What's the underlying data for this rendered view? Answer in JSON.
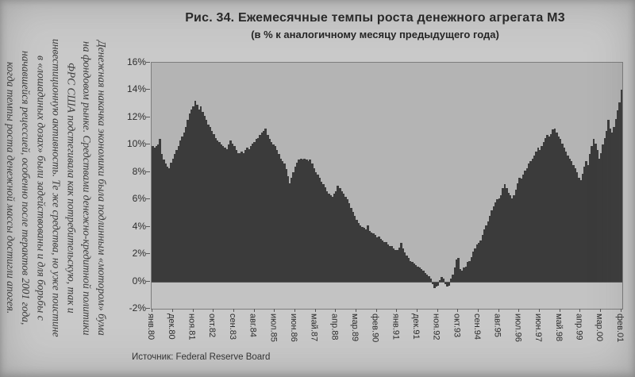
{
  "page": {
    "title": "Рис. 34. Ежемесячные темпы роста денежного агрегата М3",
    "subtitle": "(в % к аналогичному месяцу предыдущего года)",
    "source_label": "Источник:",
    "source_value": "Federal Reserve Board",
    "margin_note_lines": [
      "Денежная накачка экономики была подлинным «мотором» бума",
      "на фондовом рынке. Средствами денежно-кредитной политики",
      "ФРС США подстегивала как потребительскую, так и",
      "инвестиционную активность. Те же средства, но уже поистине",
      "в «лошадиных дозах» были задействованы и для борьбы с",
      "начавшейся рецессией, особенно после терактов 2001 года,",
      "когда темпы роста денежной массы достигли апогея."
    ]
  },
  "colors": {
    "page_bg": "#c9c9c9",
    "plot_bg": "#b4b4b4",
    "below_zero_bg": "#c3c3c3",
    "bar": "#3b3b3b",
    "axis": "#5a5a5a",
    "text": "#2e2e2e"
  },
  "chart_data": {
    "type": "bar",
    "title": "Рис. 34. Ежемесячные темпы роста денежного агрегата М3",
    "subtitle": "(в % к аналогичному месяцу предыдущего года)",
    "unit": "%",
    "frequency": "monthly",
    "period_start": "янв.80",
    "period_end": "фев.01",
    "ylim": [
      -2,
      16
    ],
    "y_ticks": [
      "16%",
      "14%",
      "12%",
      "10%",
      "8%",
      "6%",
      "4%",
      "2%",
      "0%",
      "-2%"
    ],
    "y_tick_values": [
      16,
      14,
      12,
      10,
      8,
      6,
      4,
      2,
      0,
      -2
    ],
    "x_tick_labels": [
      "янв.80",
      "дек.80",
      "ноя.81",
      "окт.82",
      "сен.83",
      "авг.84",
      "июл.85",
      "июн.86",
      "май.87",
      "апр.88",
      "мар.89",
      "фев.90",
      "янв.91",
      "дек.91",
      "ноя.92",
      "окт.93",
      "сен.94",
      "авг.95",
      "июл.96",
      "июн.97",
      "май.98",
      "апр.99",
      "мар.00",
      "фев.01"
    ],
    "x_tick_month_indices": [
      0,
      11,
      22,
      33,
      44,
      55,
      66,
      77,
      88,
      99,
      110,
      121,
      132,
      143,
      154,
      165,
      176,
      187,
      198,
      209,
      220,
      231,
      242,
      253
    ],
    "grid": false,
    "legend": false,
    "series": [
      {
        "name": "Темп роста М3, % г/г",
        "values": [
          9.9,
          9.8,
          9.9,
          10.0,
          10.4,
          9.3,
          8.9,
          8.6,
          8.4,
          8.3,
          8.7,
          9.0,
          9.3,
          9.6,
          9.9,
          10.3,
          10.6,
          10.9,
          11.3,
          11.8,
          12.3,
          12.6,
          12.8,
          13.2,
          12.9,
          12.6,
          12.8,
          12.4,
          12.1,
          11.8,
          11.5,
          11.3,
          11.0,
          10.8,
          10.5,
          10.3,
          10.2,
          10.0,
          9.9,
          9.8,
          9.7,
          10.0,
          10.3,
          10.1,
          9.9,
          9.6,
          9.4,
          9.4,
          9.5,
          9.4,
          9.6,
          9.8,
          9.7,
          9.9,
          10.1,
          10.2,
          10.4,
          10.5,
          10.7,
          10.9,
          11.0,
          11.2,
          10.7,
          10.4,
          10.2,
          10.0,
          9.9,
          9.6,
          9.3,
          9.0,
          8.8,
          8.6,
          8.2,
          7.7,
          7.2,
          7.6,
          8.0,
          8.4,
          8.7,
          8.9,
          9.0,
          8.9,
          9.0,
          8.9,
          8.8,
          8.9,
          8.6,
          8.3,
          8.0,
          7.8,
          7.6,
          7.3,
          7.1,
          6.9,
          6.6,
          6.4,
          6.3,
          6.2,
          6.4,
          6.6,
          7.0,
          6.8,
          6.6,
          6.4,
          6.2,
          6.0,
          5.7,
          5.4,
          5.1,
          4.8,
          4.5,
          4.3,
          4.1,
          4.0,
          3.9,
          3.8,
          4.1,
          3.7,
          3.6,
          3.5,
          3.4,
          3.2,
          3.3,
          3.1,
          3.0,
          2.9,
          2.9,
          2.7,
          2.6,
          2.6,
          2.4,
          2.3,
          2.3,
          2.5,
          2.8,
          2.4,
          2.1,
          1.9,
          1.7,
          1.5,
          1.4,
          1.3,
          1.2,
          1.1,
          1.0,
          0.9,
          0.8,
          0.6,
          0.5,
          0.4,
          0.2,
          -0.2,
          -0.5,
          -0.4,
          -0.3,
          0.1,
          0.3,
          0.2,
          -0.2,
          -0.4,
          -0.3,
          0.2,
          0.5,
          1.0,
          1.6,
          1.7,
          0.9,
          0.8,
          1.0,
          1.1,
          1.4,
          1.5,
          1.8,
          2.2,
          2.4,
          2.7,
          2.8,
          3.0,
          3.4,
          3.8,
          4.1,
          4.4,
          4.8,
          5.2,
          5.5,
          5.8,
          6.0,
          6.1,
          6.3,
          6.8,
          7.1,
          6.8,
          6.5,
          6.3,
          6.1,
          6.3,
          6.7,
          7.2,
          7.6,
          7.5,
          7.8,
          8.1,
          8.3,
          8.6,
          8.8,
          9.0,
          9.2,
          9.5,
          9.8,
          9.6,
          9.9,
          10.2,
          10.5,
          10.7,
          10.6,
          10.8,
          11.1,
          11.2,
          10.9,
          10.6,
          10.4,
          10.1,
          9.8,
          9.5,
          9.2,
          9.0,
          8.8,
          8.5,
          8.3,
          8.0,
          7.6,
          7.4,
          7.9,
          8.4,
          8.8,
          8.5,
          9.3,
          9.9,
          10.4,
          10.1,
          9.6,
          9.0,
          9.4,
          10.0,
          10.5,
          11.0,
          11.8,
          11.2,
          10.9,
          11.3,
          11.9,
          12.5,
          13.1,
          14.0
        ]
      }
    ]
  }
}
